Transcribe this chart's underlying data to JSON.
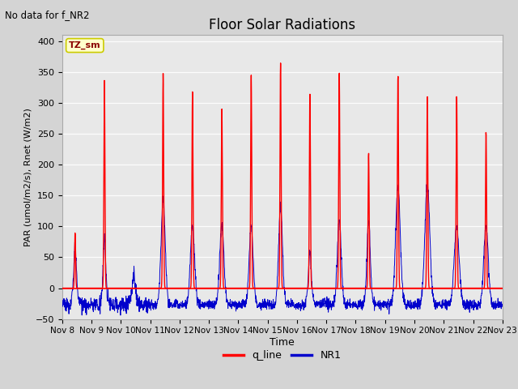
{
  "title": "Floor Solar Radiations",
  "subtitle": "No data for f_NR2",
  "xlabel": "Time",
  "ylabel": "PAR (umol/m2/s), Rnet (W/m2)",
  "ylim": [
    -50,
    410
  ],
  "n_days": 15,
  "x_tick_labels": [
    "Nov 8",
    "Nov 9",
    "Nov 10",
    "Nov 11",
    "Nov 12",
    "Nov 13",
    "Nov 14",
    "Nov 15",
    "Nov 16",
    "Nov 17",
    "Nov 18",
    "Nov 19",
    "Nov 20",
    "Nov 21",
    "Nov 22",
    "Nov 23"
  ],
  "legend_labels": [
    "q_line",
    "NR1"
  ],
  "legend_colors": [
    "#ff0000",
    "#0000cc"
  ],
  "q_line_color": "#ff0000",
  "nr1_color": "#0000cc",
  "bg_color": "#d4d4d4",
  "plot_bg_color": "#e8e8e8",
  "annotation_text": "TZ_sm",
  "annotation_bg": "#ffffcc",
  "annotation_border": "#cccc00",
  "red_peaks": [
    90,
    338,
    0,
    348,
    318,
    290,
    345,
    365,
    315,
    350,
    220,
    347,
    315,
    315,
    255
  ],
  "blue_peaks": [
    65,
    80,
    22,
    140,
    100,
    100,
    100,
    130,
    58,
    110,
    108,
    163,
    167,
    100,
    100
  ],
  "blue_widths": [
    0.04,
    0.04,
    0.03,
    0.07,
    0.07,
    0.07,
    0.065,
    0.065,
    0.045,
    0.065,
    0.055,
    0.08,
    0.085,
    0.085,
    0.075
  ],
  "red_widths": [
    0.018,
    0.018,
    0.018,
    0.018,
    0.018,
    0.018,
    0.018,
    0.018,
    0.018,
    0.018,
    0.018,
    0.018,
    0.018,
    0.018,
    0.018
  ],
  "night_level": -28,
  "noise_std": 4,
  "pts_per_day": 144
}
